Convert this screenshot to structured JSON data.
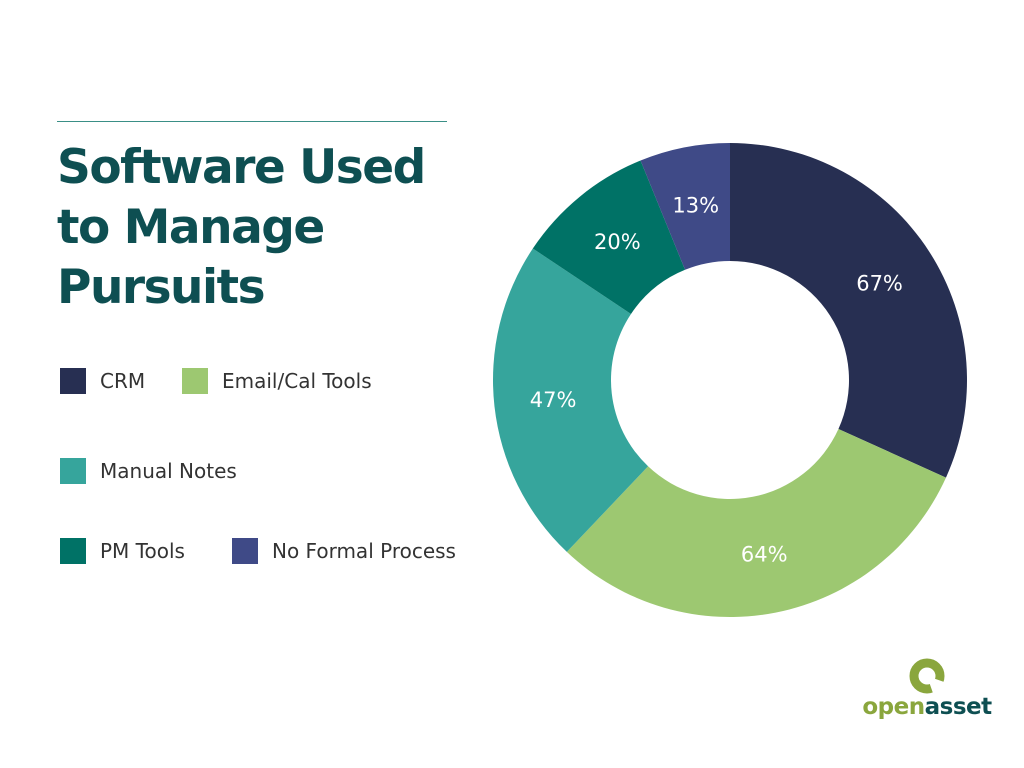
{
  "chart_data": {
    "type": "pie",
    "title_lines": [
      "Software Used",
      "to Manage",
      "Pursuits"
    ],
    "categories": [
      "CRM",
      "Email/Cal Tools",
      "Manual Notes",
      "PM Tools",
      "No Formal Process"
    ],
    "values": [
      67,
      64,
      47,
      20,
      13
    ],
    "data_labels": [
      "67%",
      "64%",
      "47%",
      "20%",
      "13%"
    ],
    "colors": [
      "#272f52",
      "#9dc871",
      "#36a59c",
      "#007266",
      "#3f4a87"
    ],
    "donut": true,
    "legend_position": "left"
  },
  "logo": {
    "text_part1": "open",
    "text_part2": "asset",
    "color1": "#8aa63d",
    "color2": "#0e4f52",
    "mark_icon": "ring-icon"
  }
}
